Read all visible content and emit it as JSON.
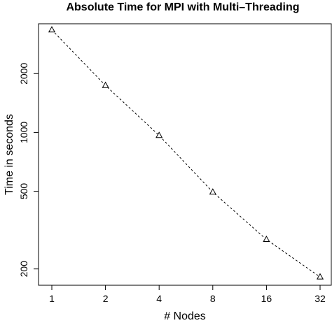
{
  "chart_data": {
    "type": "line",
    "title": "Absolute Time for MPI with Multi–Threading",
    "xlabel": "# Nodes",
    "ylabel": "Time in seconds",
    "x_scale": "log2",
    "y_scale": "log",
    "x": [
      1,
      2,
      4,
      8,
      16,
      32
    ],
    "x_tick_labels": [
      "1",
      "2",
      "4",
      "8",
      "16",
      "32"
    ],
    "y_ticks": [
      200,
      500,
      1000,
      2000
    ],
    "y_tick_labels": [
      "200",
      "500",
      "1000",
      "2000"
    ],
    "ylim": [
      165,
      3600
    ],
    "series": [
      {
        "values": [
          3350,
          1740,
          965,
          495,
          283,
          182
        ],
        "marker": "triangle-open",
        "line_style": "dashed",
        "color": "#000000"
      }
    ],
    "grid": false,
    "legend": "none"
  }
}
